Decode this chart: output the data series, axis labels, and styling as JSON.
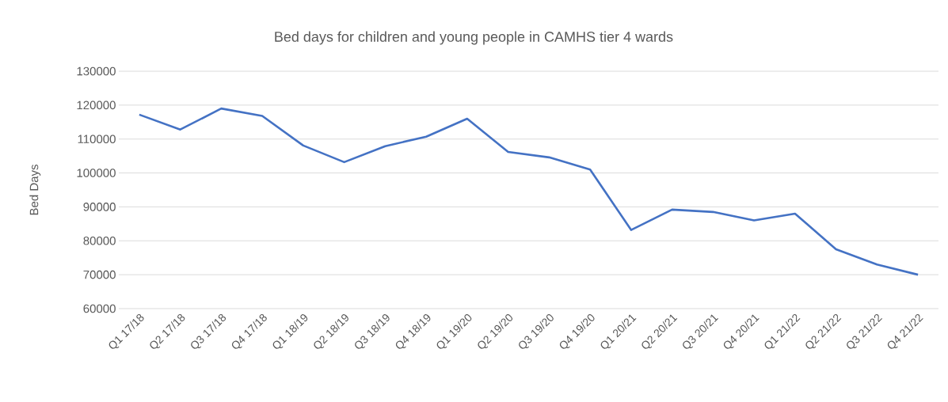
{
  "chart_data": {
    "type": "line",
    "title": "Bed days for children and young people in CAMHS tier 4 wards",
    "ylabel": "Bed Days",
    "categories": [
      "Q1 17/18",
      "Q2 17/18",
      "Q3 17/18",
      "Q4 17/18",
      "Q1 18/19",
      "Q2 18/19",
      "Q3 18/19",
      "Q4 18/19",
      "Q1 19/20",
      "Q2 19/20",
      "Q3 19/20",
      "Q4 19/20",
      "Q1 20/21",
      "Q2 20/21",
      "Q3 20/21",
      "Q4 20/21",
      "Q1 21/22",
      "Q2 21/22",
      "Q3 21/22",
      "Q4 21/22"
    ],
    "series": [
      {
        "color": "#4472c4",
        "values": [
          117200,
          112800,
          119000,
          116800,
          108100,
          103200,
          107900,
          110700,
          116000,
          106200,
          104600,
          101000,
          83200,
          89200,
          88500,
          86000,
          88000,
          77500,
          73000,
          70000
        ]
      }
    ],
    "ylim": [
      60000,
      130000
    ],
    "yticks": [
      60000,
      70000,
      80000,
      90000,
      100000,
      110000,
      120000,
      130000
    ],
    "grid": "y",
    "legend": false,
    "marker": "none",
    "line_style": "solid"
  }
}
